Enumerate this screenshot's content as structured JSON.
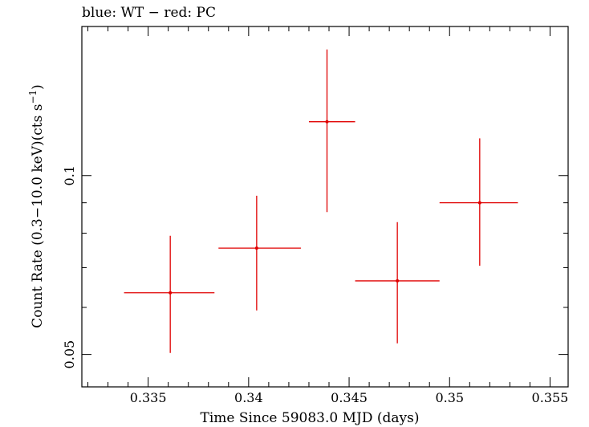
{
  "chart_data": {
    "type": "scatter",
    "title": "blue: WT − red: PC",
    "xlabel": "Time Since 59083.0 MJD (days)",
    "ylabel": "Count Rate (0.3−10.0 keV)(cts s",
    "ylabel_sup": "−1",
    "ylabel_close": ")",
    "xlim": [
      0.3317,
      0.3559
    ],
    "ylim": [
      0.0441,
      0.1782
    ],
    "yscale": "log",
    "grid": false,
    "x_ticks": [
      {
        "value": 0.335,
        "label": "0.335"
      },
      {
        "value": 0.34,
        "label": "0.34"
      },
      {
        "value": 0.345,
        "label": "0.345"
      },
      {
        "value": 0.35,
        "label": "0.35"
      },
      {
        "value": 0.355,
        "label": "0.355"
      }
    ],
    "y_ticks": [
      {
        "value": 0.05,
        "label": "0.05"
      },
      {
        "value": 0.1,
        "label": "0.1"
      }
    ],
    "series": [
      {
        "color": "#e00000",
        "points": [
          {
            "x": 0.3361,
            "y": 0.0635,
            "xerr_low": 0.3338,
            "xerr_high": 0.3383,
            "yerr_low": 0.0503,
            "yerr_high": 0.0792
          },
          {
            "x": 0.3404,
            "y": 0.0755,
            "xerr_low": 0.3385,
            "xerr_high": 0.3426,
            "yerr_low": 0.0593,
            "yerr_high": 0.0925
          },
          {
            "x": 0.3439,
            "y": 0.1232,
            "xerr_low": 0.343,
            "xerr_high": 0.3453,
            "yerr_low": 0.0868,
            "yerr_high": 0.163
          },
          {
            "x": 0.3474,
            "y": 0.0665,
            "xerr_low": 0.3453,
            "xerr_high": 0.3495,
            "yerr_low": 0.0522,
            "yerr_high": 0.0835
          },
          {
            "x": 0.3515,
            "y": 0.09,
            "xerr_low": 0.3495,
            "xerr_high": 0.3534,
            "yerr_low": 0.0705,
            "yerr_high": 0.1155
          }
        ]
      }
    ]
  }
}
